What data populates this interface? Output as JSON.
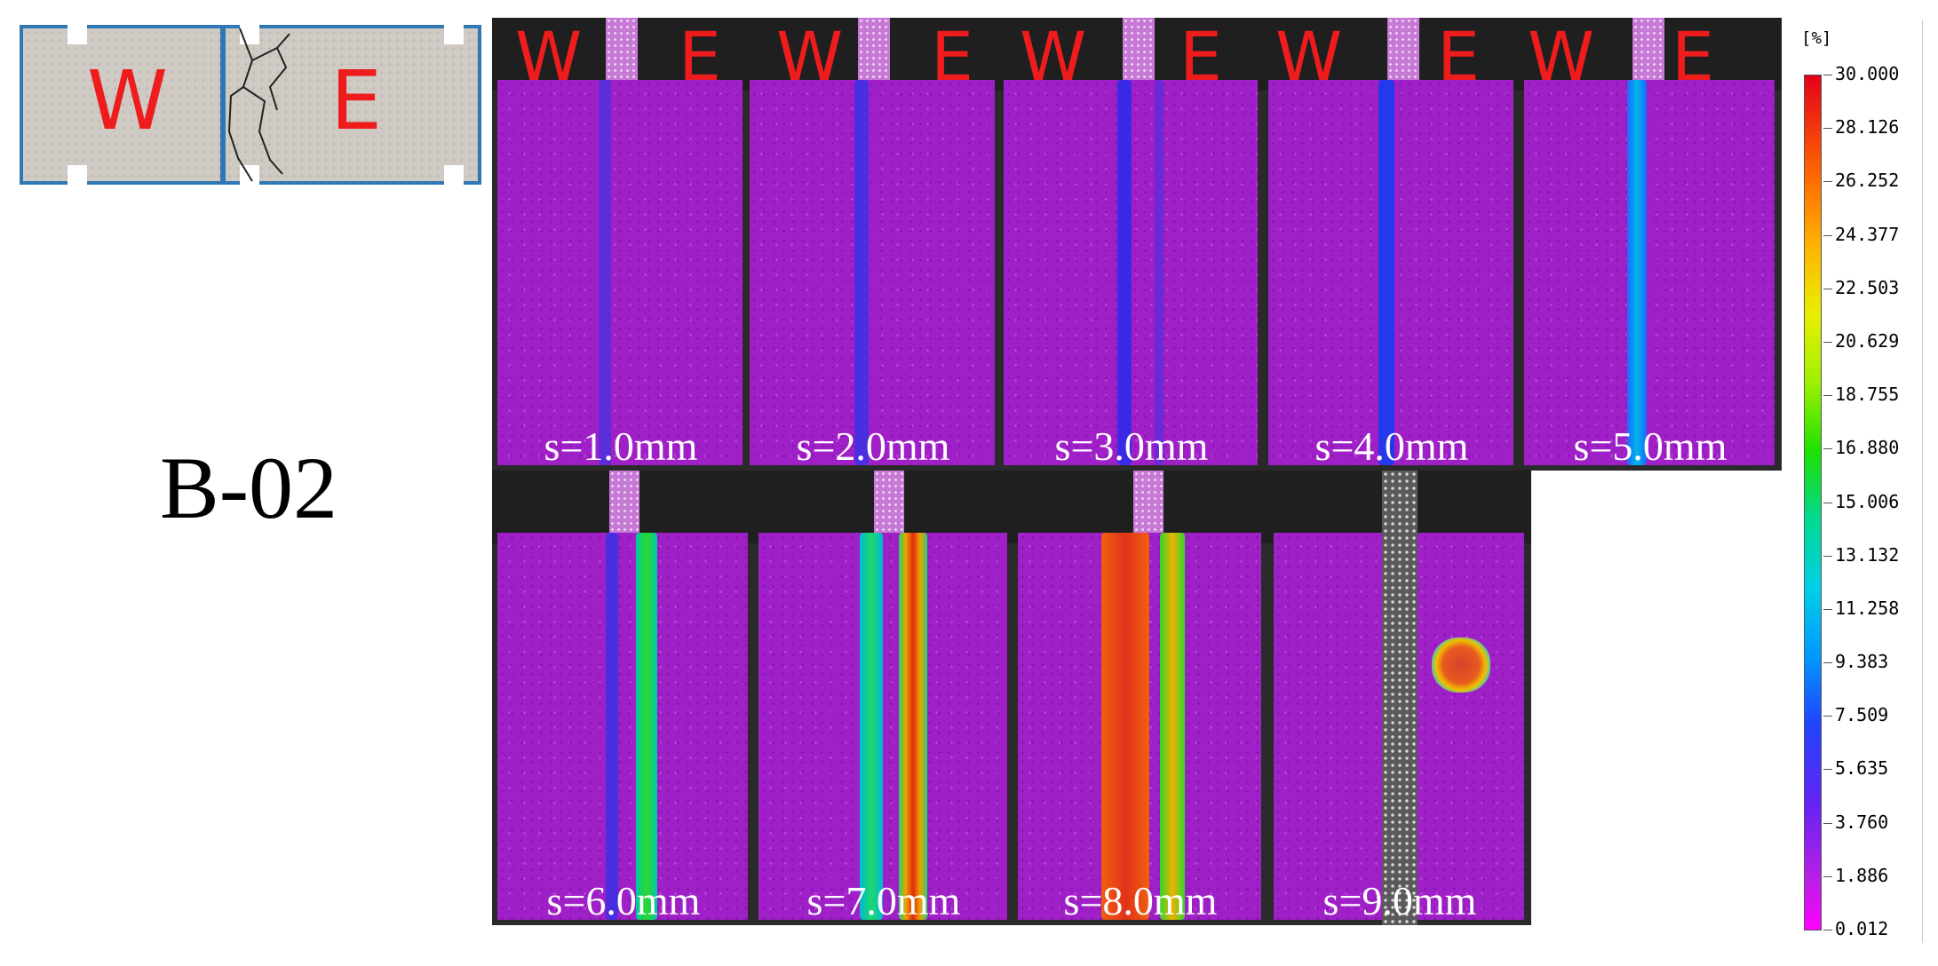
{
  "schematic": {
    "west_label": "W",
    "east_label": "E"
  },
  "specimen_id": "B-02",
  "direction_labels": {
    "west": "W",
    "east": "E"
  },
  "panels": [
    {
      "displacement": "s=1.0mm"
    },
    {
      "displacement": "s=2.0mm"
    },
    {
      "displacement": "s=3.0mm"
    },
    {
      "displacement": "s=4.0mm"
    },
    {
      "displacement": "s=5.0mm"
    },
    {
      "displacement": "s=6.0mm"
    },
    {
      "displacement": "s=7.0mm"
    },
    {
      "displacement": "s=8.0mm"
    },
    {
      "displacement": "s=9.0mm"
    }
  ],
  "color_scale": {
    "unit": "[%]",
    "ticks": [
      "30.000",
      "28.126",
      "26.252",
      "24.377",
      "22.503",
      "20.629",
      "18.755",
      "16.880",
      "15.006",
      "13.132",
      "11.258",
      "9.383",
      "7.509",
      "5.635",
      "3.760",
      "1.886",
      "0.012"
    ],
    "max_color": "#e5001a",
    "min_color": "#ff00ff"
  }
}
